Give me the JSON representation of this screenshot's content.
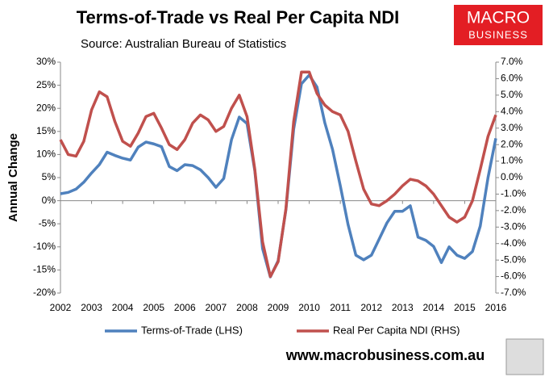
{
  "chart_data": {
    "type": "line",
    "title": "Terms-of-Trade vs Real Per Capita NDI",
    "subtitle": "Source: Australian Bureau of Statistics",
    "ylabel": "Annual Change",
    "logo": [
      "MACRO",
      "BUSINESS"
    ],
    "footer": "www.macrobusiness.com.au",
    "x": [
      2002,
      2002.25,
      2002.5,
      2002.75,
      2003,
      2003.25,
      2003.5,
      2003.75,
      2004,
      2004.25,
      2004.5,
      2004.75,
      2005,
      2005.25,
      2005.5,
      2005.75,
      2006,
      2006.25,
      2006.5,
      2006.75,
      2007,
      2007.25,
      2007.5,
      2007.75,
      2008,
      2008.25,
      2008.5,
      2008.75,
      2009,
      2009.25,
      2009.5,
      2009.75,
      2010,
      2010.25,
      2010.5,
      2010.75,
      2011,
      2011.25,
      2011.5,
      2011.75,
      2012,
      2012.25,
      2012.5,
      2012.75,
      2013,
      2013.25,
      2013.5,
      2013.75,
      2014,
      2014.25,
      2014.5,
      2014.75,
      2015,
      2015.25,
      2015.5,
      2015.75,
      2016
    ],
    "xlim": [
      2002,
      2016
    ],
    "xticks": [
      2002,
      2003,
      2004,
      2005,
      2006,
      2007,
      2008,
      2009,
      2010,
      2011,
      2012,
      2013,
      2014,
      2015,
      2016
    ],
    "ylim": [
      -20,
      30
    ],
    "yticks": [
      {
        "value": -20,
        "label": "-20%"
      },
      {
        "value": -15,
        "label": "-15%"
      },
      {
        "value": -10,
        "label": "-10%"
      },
      {
        "value": -5,
        "label": "-5%"
      },
      {
        "value": 0,
        "label": "0%"
      },
      {
        "value": 5,
        "label": "5%"
      },
      {
        "value": 10,
        "label": "10%"
      },
      {
        "value": 15,
        "label": "15%"
      },
      {
        "value": 20,
        "label": "20%"
      },
      {
        "value": 25,
        "label": "25%"
      },
      {
        "value": 30,
        "label": "30%"
      }
    ],
    "y2lim": [
      -7,
      7
    ],
    "y2ticks": [
      {
        "value": -7,
        "label": "-7.0%"
      },
      {
        "value": -6,
        "label": "-6.0%"
      },
      {
        "value": -5,
        "label": "-5.0%"
      },
      {
        "value": -4,
        "label": "-4.0%"
      },
      {
        "value": -3,
        "label": "-3.0%"
      },
      {
        "value": -2,
        "label": "-2.0%"
      },
      {
        "value": -1,
        "label": "-1.0%"
      },
      {
        "value": 0,
        "label": "0.0%"
      },
      {
        "value": 1,
        "label": "1.0%"
      },
      {
        "value": 2,
        "label": "2.0%"
      },
      {
        "value": 3,
        "label": "3.0%"
      },
      {
        "value": 4,
        "label": "4.0%"
      },
      {
        "value": 5,
        "label": "5.0%"
      },
      {
        "value": 6,
        "label": "6.0%"
      },
      {
        "value": 7,
        "label": "7.0%"
      }
    ],
    "legend": "bottom",
    "series": [
      {
        "name": "Terms-of-Trade (LHS)",
        "color": "#4f81bd",
        "axis": "y",
        "values": [
          1.5,
          1.8,
          2.5,
          4,
          6,
          7.8,
          10.5,
          9.8,
          9.2,
          8.8,
          11.6,
          12.7,
          12.3,
          11.7,
          7.4,
          6.5,
          7.8,
          7.6,
          6.7,
          5,
          2.9,
          4.8,
          13.2,
          18.1,
          16.7,
          6.5,
          -10.4,
          -16.5,
          -13,
          -2,
          15.5,
          25.3,
          27.2,
          24.6,
          16.9,
          11.1,
          3.2,
          -5.2,
          -11.8,
          -12.8,
          -11.8,
          -8.3,
          -4.8,
          -2.3,
          -2.3,
          -1.1,
          -7.9,
          -8.6,
          -9.9,
          -13.4,
          -10,
          -11.8,
          -12.5,
          -11,
          -5.5,
          5,
          13.5
        ]
      },
      {
        "name": "Real Per Capita NDI (RHS)",
        "color": "#c0504d",
        "axis": "y2",
        "values": [
          2.3,
          1.4,
          1.3,
          2.2,
          4.1,
          5.2,
          4.9,
          3.4,
          2.2,
          1.9,
          2.7,
          3.7,
          3.9,
          3,
          2,
          1.7,
          2.3,
          3.3,
          3.8,
          3.5,
          2.8,
          3.1,
          4.2,
          5,
          3.7,
          0.5,
          -3.9,
          -6,
          -5.1,
          -1.9,
          3.4,
          6.4,
          6.4,
          5.1,
          4.4,
          4,
          3.8,
          2.8,
          1,
          -0.7,
          -1.6,
          -1.7,
          -1.4,
          -1,
          -0.5,
          -0.1,
          -0.2,
          -0.5,
          -1,
          -1.7,
          -2.4,
          -2.7,
          -2.4,
          -1.4,
          0.5,
          2.5,
          3.8
        ]
      }
    ]
  }
}
